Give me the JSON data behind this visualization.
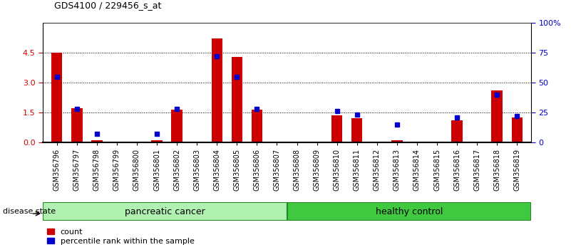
{
  "title": "GDS4100 / 229456_s_at",
  "samples": [
    "GSM356796",
    "GSM356797",
    "GSM356798",
    "GSM356799",
    "GSM356800",
    "GSM356801",
    "GSM356802",
    "GSM356803",
    "GSM356804",
    "GSM356805",
    "GSM356806",
    "GSM356807",
    "GSM356808",
    "GSM356809",
    "GSM356810",
    "GSM356811",
    "GSM356812",
    "GSM356813",
    "GSM356814",
    "GSM356815",
    "GSM356816",
    "GSM356817",
    "GSM356818",
    "GSM356819"
  ],
  "counts": [
    4.5,
    1.7,
    0.1,
    0.0,
    0.0,
    0.1,
    1.65,
    0.0,
    5.2,
    4.3,
    1.65,
    0.0,
    0.0,
    0.0,
    1.35,
    1.2,
    0.0,
    0.1,
    0.0,
    0.0,
    1.1,
    0.0,
    2.6,
    1.25
  ],
  "percentiles": [
    55,
    28,
    7,
    0,
    0,
    7,
    28,
    0,
    72,
    55,
    28,
    0,
    0,
    0,
    26,
    23,
    0,
    15,
    0,
    0,
    21,
    0,
    40,
    22
  ],
  "group1_label": "pancreatic cancer",
  "group2_label": "healthy control",
  "group1_count": 12,
  "group2_count": 12,
  "ylim_left": [
    0,
    6
  ],
  "ylim_right": [
    0,
    100
  ],
  "yticks_left": [
    0,
    1.5,
    3.0,
    4.5
  ],
  "yticks_right": [
    0,
    25,
    50,
    75,
    100
  ],
  "bar_color": "#cc0000",
  "dot_color": "#0000cc",
  "bg_color": "#c8c8c8",
  "group1_facecolor": "#b0f0b0",
  "group2_facecolor": "#40c840",
  "group_edgecolor": "#228B22",
  "legend_count_label": "count",
  "legend_pct_label": "percentile rank within the sample",
  "legend_sq_size": 6
}
